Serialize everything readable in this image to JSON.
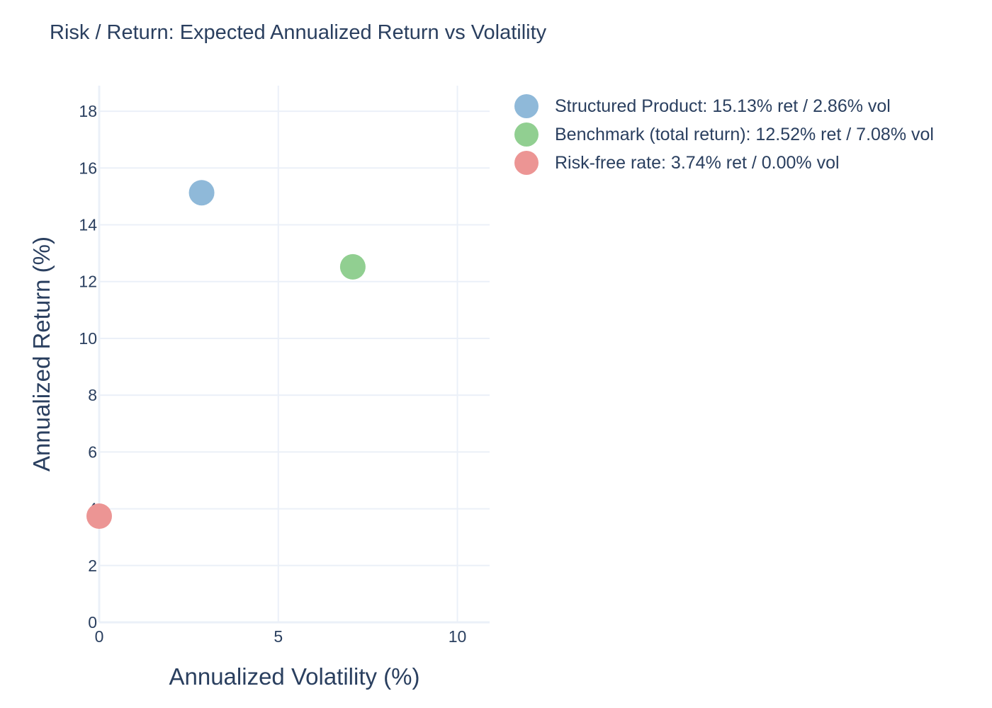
{
  "chart_data": {
    "type": "scatter",
    "title": "Risk / Return: Expected Annualized Return vs Volatility",
    "xlabel": "Annualized Volatility (%)",
    "ylabel": "Annualized Return (%)",
    "xlim": [
      0,
      10.9
    ],
    "ylim": [
      0,
      18.9
    ],
    "xticks": [
      0,
      5,
      10
    ],
    "yticks": [
      0,
      2,
      4,
      6,
      8,
      10,
      12,
      14,
      16,
      18
    ],
    "grid": true,
    "legend_position": "top-right",
    "series": [
      {
        "name": "Structured Product: 15.13% ret / 2.86% vol",
        "color": "#8fb9d9",
        "points": [
          {
            "x": 2.86,
            "y": 15.13
          }
        ]
      },
      {
        "name": "Benchmark (total return): 12.52% ret / 7.08% vol",
        "color": "#91cf91",
        "points": [
          {
            "x": 7.08,
            "y": 12.52
          }
        ]
      },
      {
        "name": "Risk-free rate: 3.74% ret / 0.00% vol",
        "color": "#ec9594",
        "points": [
          {
            "x": 0.0,
            "y": 3.74
          }
        ]
      }
    ]
  }
}
